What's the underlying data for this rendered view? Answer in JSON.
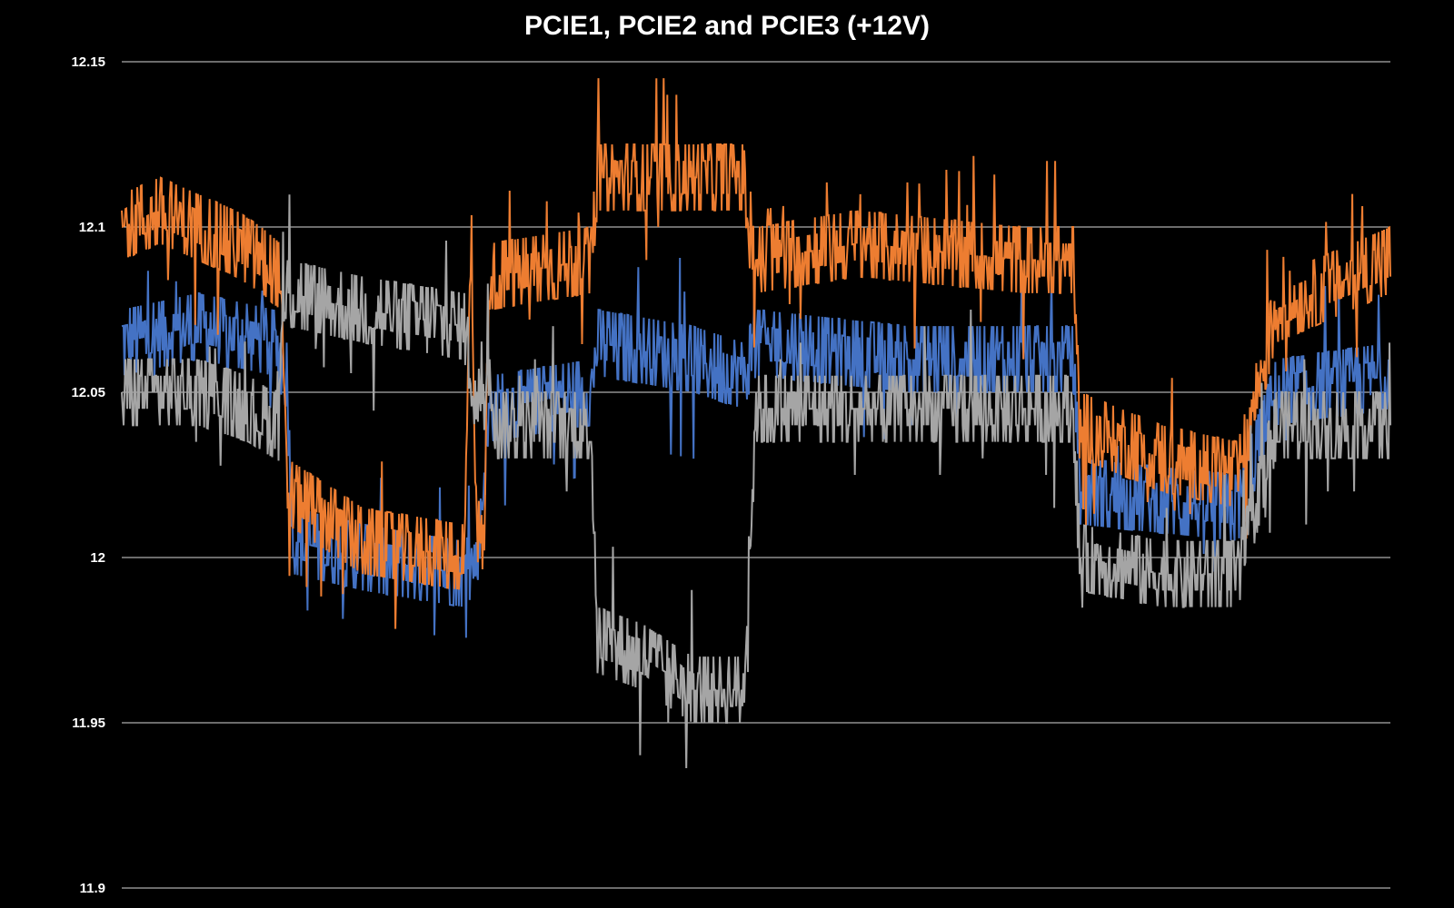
{
  "chart_data": {
    "type": "line",
    "title": "PCIE1, PCIE2 and PCIE3 (+12V)",
    "ylim": [
      11.9,
      12.15
    ],
    "y_ticks": [
      "12.15",
      "12.1",
      "12.05",
      "12",
      "11.95",
      "11.9"
    ],
    "grid": true,
    "legend": "none",
    "x_range": [
      0,
      100
    ],
    "series": [
      {
        "color": "#4472C4",
        "points": [
          [
            0,
            12.065
          ],
          [
            6,
            12.07
          ],
          [
            12,
            12.065
          ],
          [
            13,
            12.055
          ],
          [
            13.5,
            12.005
          ],
          [
            19,
            12.0
          ],
          [
            27,
            11.995
          ],
          [
            28,
            12.0
          ],
          [
            29,
            12.045
          ],
          [
            37,
            12.05
          ],
          [
            37.5,
            12.065
          ],
          [
            45,
            12.06
          ],
          [
            49,
            12.055
          ],
          [
            50,
            12.065
          ],
          [
            62,
            12.06
          ],
          [
            70,
            12.06
          ],
          [
            75,
            12.06
          ],
          [
            75.5,
            12.02
          ],
          [
            88,
            12.015
          ],
          [
            91,
            12.05
          ],
          [
            100,
            12.055
          ]
        ]
      },
      {
        "color": "#ED7D31",
        "points": [
          [
            0,
            12.1
          ],
          [
            3,
            12.105
          ],
          [
            6,
            12.1
          ],
          [
            9,
            12.095
          ],
          [
            11,
            12.09
          ],
          [
            12.5,
            12.085
          ],
          [
            13,
            12.02
          ],
          [
            19,
            12.005
          ],
          [
            27,
            12.0
          ],
          [
            27.5,
            12.09
          ],
          [
            28,
            12.01
          ],
          [
            28.5,
            12.0
          ],
          [
            29,
            12.085
          ],
          [
            37,
            12.09
          ],
          [
            37.5,
            12.115
          ],
          [
            49,
            12.115
          ],
          [
            50,
            12.09
          ],
          [
            58,
            12.095
          ],
          [
            71,
            12.09
          ],
          [
            75,
            12.09
          ],
          [
            75.5,
            12.04
          ],
          [
            82,
            12.03
          ],
          [
            88,
            12.025
          ],
          [
            91,
            12.075
          ],
          [
            100,
            12.09
          ]
        ]
      },
      {
        "color": "#A5A5A5",
        "points": [
          [
            0,
            12.05
          ],
          [
            6,
            12.05
          ],
          [
            10,
            12.045
          ],
          [
            12,
            12.04
          ],
          [
            13,
            12.08
          ],
          [
            19,
            12.075
          ],
          [
            27,
            12.07
          ],
          [
            28,
            12.045
          ],
          [
            29,
            12.06
          ],
          [
            29.5,
            12.04
          ],
          [
            37,
            12.04
          ],
          [
            37.5,
            11.975
          ],
          [
            41,
            11.97
          ],
          [
            45,
            11.96
          ],
          [
            49,
            11.96
          ],
          [
            50,
            12.045
          ],
          [
            62,
            12.045
          ],
          [
            75,
            12.045
          ],
          [
            75.5,
            12.0
          ],
          [
            82,
            11.995
          ],
          [
            88,
            11.995
          ],
          [
            91,
            12.04
          ],
          [
            100,
            12.04
          ]
        ]
      }
    ]
  }
}
